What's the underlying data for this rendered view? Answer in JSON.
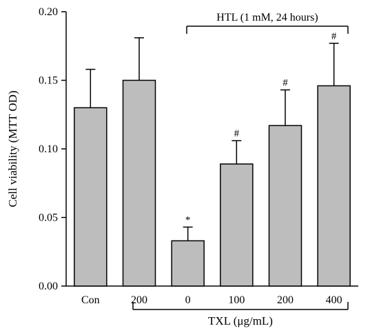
{
  "chart_data": {
    "type": "bar",
    "categories": [
      "Con",
      "200",
      "0",
      "100",
      "200",
      "400"
    ],
    "values": [
      0.13,
      0.15,
      0.033,
      0.089,
      0.117,
      0.146
    ],
    "error_upper": [
      0.158,
      0.181,
      0.043,
      0.106,
      0.143,
      0.177
    ],
    "markers": [
      "",
      "",
      "*",
      "#",
      "#",
      "#"
    ],
    "ylabel": "Cell viability (MTT OD)",
    "xlabel": "TXL (μg/mL)",
    "top_annotation": "HTL (1 mM, 24 hours)",
    "ylim": [
      0,
      0.2
    ],
    "yticks": [
      "0.00",
      "0.05",
      "0.10",
      "0.15",
      "0.20"
    ],
    "ytick_values": [
      0,
      0.05,
      0.1,
      0.15,
      0.2
    ],
    "grid": false,
    "colors": {
      "bar_fill": "#bdbdbd",
      "stroke": "#000000"
    }
  }
}
